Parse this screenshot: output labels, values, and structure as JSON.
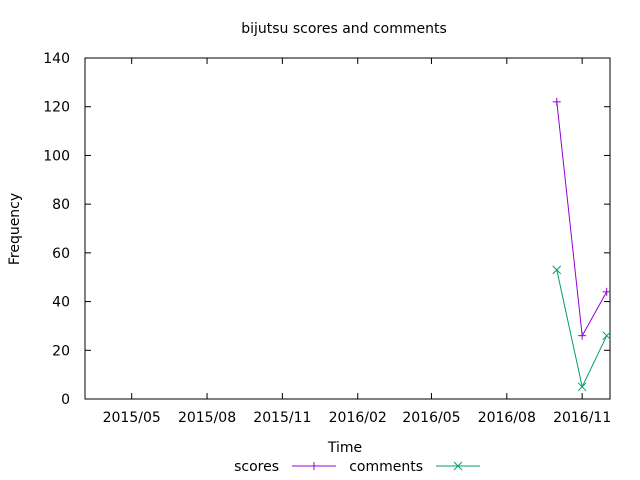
{
  "chart_data": {
    "type": "line",
    "title": "bijutsu scores and comments",
    "xlabel": "Time",
    "ylabel": "Frequency",
    "x_ticks": [
      "2015/05",
      "2015/08",
      "2015/11",
      "2016/02",
      "2016/05",
      "2016/08",
      "2016/11"
    ],
    "y_ticks": [
      "0",
      "20",
      "40",
      "60",
      "80",
      "100",
      "120",
      "140"
    ],
    "xlim": [
      "2015-03-05",
      "2016-12-05"
    ],
    "ylim": [
      0,
      140
    ],
    "grid": false,
    "legend_position": "bottom-center",
    "series": [
      {
        "name": "scores",
        "color": "#9400d3",
        "marker": "plus",
        "points": [
          {
            "x": "2016-10-01",
            "y": 122
          },
          {
            "x": "2016-11-01",
            "y": 26
          },
          {
            "x": "2016-12-01",
            "y": 44
          }
        ]
      },
      {
        "name": "comments",
        "color": "#009e73",
        "marker": "cross",
        "points": [
          {
            "x": "2016-10-01",
            "y": 53
          },
          {
            "x": "2016-11-01",
            "y": 5
          },
          {
            "x": "2016-12-01",
            "y": 26
          }
        ]
      }
    ]
  }
}
